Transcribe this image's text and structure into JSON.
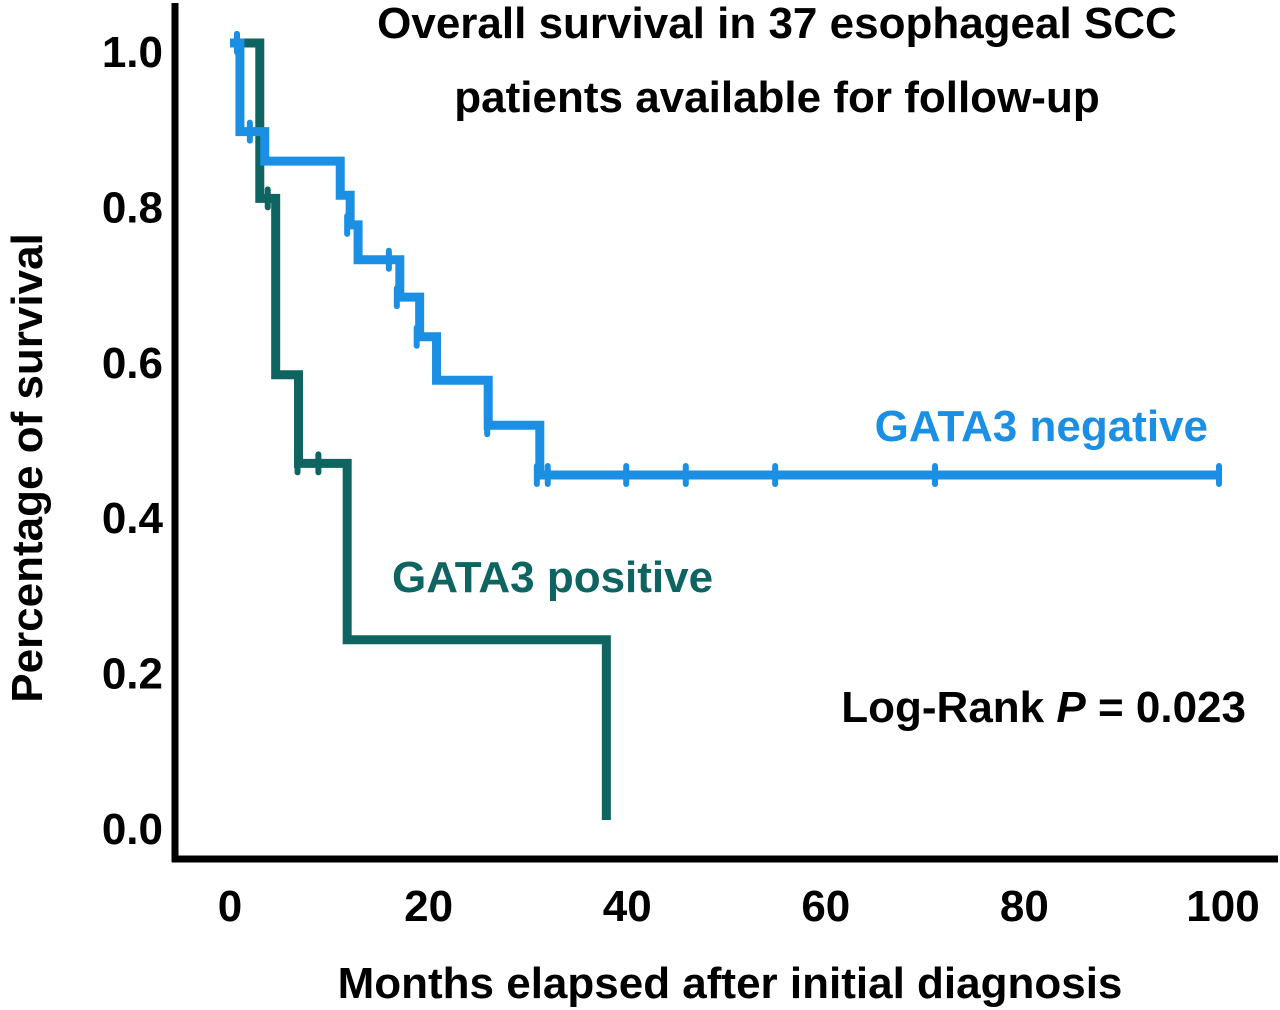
{
  "chart_data": {
    "type": "line",
    "subtype": "kaplan-meier step",
    "title": [
      "Overall survival in 37 esophageal SCC",
      "patients available for follow-up"
    ],
    "xlabel": "Months elapsed after initial diagnosis",
    "ylabel": "Percentage of survival",
    "xlim": [
      0,
      100
    ],
    "ylim": [
      0,
      1.0
    ],
    "xticks": [
      0,
      20,
      40,
      60,
      80,
      100
    ],
    "xtick_labels": [
      "0",
      "20",
      "40",
      "60",
      "80",
      "100"
    ],
    "yticks": [
      0.0,
      0.2,
      0.4,
      0.6,
      0.8,
      1.0
    ],
    "ytick_labels": [
      "0.0",
      "0.2",
      "0.4",
      "0.6",
      "0.8",
      "1.0"
    ],
    "grid": false,
    "legend": "inline labels",
    "series": [
      {
        "name": "GATA3 negative",
        "color": "#1a8fe3",
        "label_position": "right, above curve",
        "steps": [
          [
            0,
            1.0
          ],
          [
            1.0,
            0.886
          ],
          [
            3.5,
            0.848
          ],
          [
            11.1,
            0.804
          ],
          [
            12.1,
            0.766
          ],
          [
            12.9,
            0.721
          ],
          [
            17.1,
            0.673
          ],
          [
            19.1,
            0.622
          ],
          [
            20.8,
            0.566
          ],
          [
            26.0,
            0.508
          ],
          [
            31.2,
            0.444
          ]
        ],
        "end_time": 99.7,
        "censored": [
          [
            0.7,
            1.0
          ],
          [
            2.0,
            0.886
          ],
          [
            11.8,
            0.766
          ],
          [
            16.0,
            0.721
          ],
          [
            16.8,
            0.673
          ],
          [
            18.8,
            0.622
          ],
          [
            25.9,
            0.508
          ],
          [
            30.9,
            0.444
          ],
          [
            32.0,
            0.444
          ],
          [
            39.9,
            0.444
          ],
          [
            45.9,
            0.444
          ],
          [
            54.9,
            0.444
          ],
          [
            71.0,
            0.444
          ],
          [
            99.6,
            0.444
          ]
        ]
      },
      {
        "name": "GATA3 positive",
        "color": "#0e6460",
        "label_position": "middle, right of curve",
        "steps": [
          [
            0,
            1.0
          ],
          [
            3.0,
            0.8
          ],
          [
            4.6,
            0.573
          ],
          [
            6.9,
            0.459
          ],
          [
            11.8,
            0.232
          ],
          [
            37.9,
            0.0
          ]
        ],
        "end_time": 37.9,
        "censored": [
          [
            0.7,
            1.0
          ],
          [
            3.8,
            0.8
          ],
          [
            6.8,
            0.459
          ],
          [
            8.9,
            0.459
          ]
        ]
      }
    ],
    "annotations": [
      {
        "text_prefix": "Log-Rank ",
        "text_italic": "P",
        "text_suffix": " = 0.023",
        "position": "lower-right"
      }
    ]
  }
}
